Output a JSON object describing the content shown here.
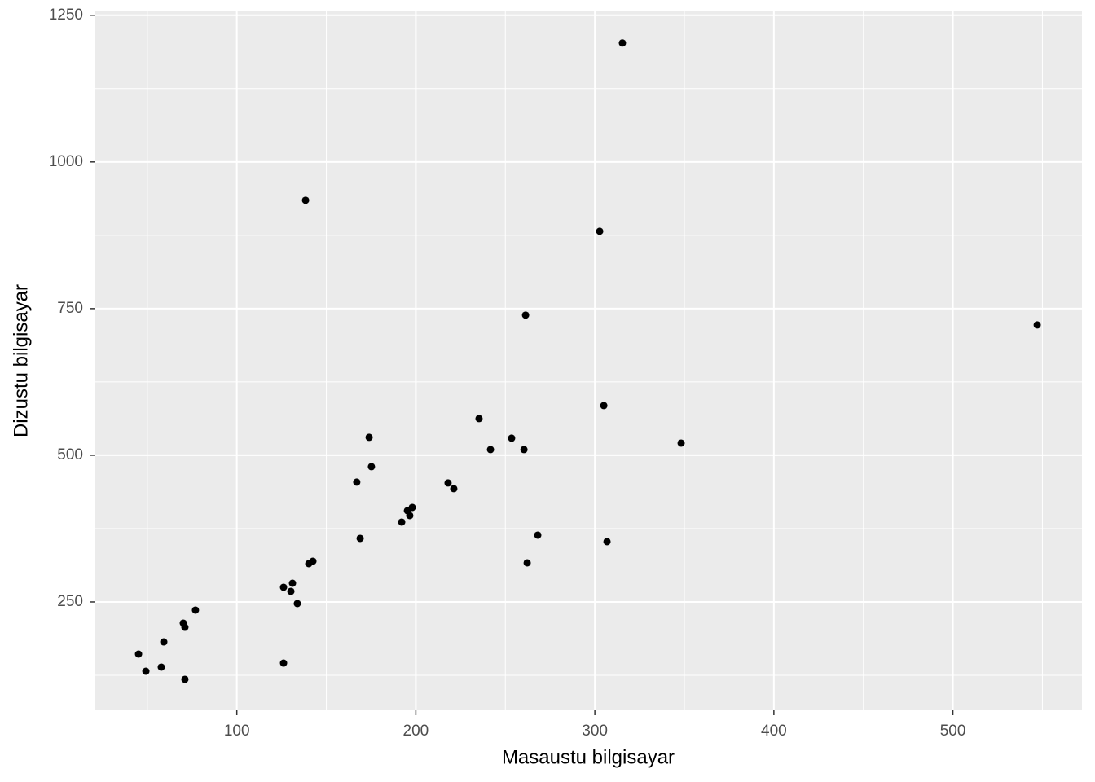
{
  "chart_data": {
    "type": "scatter",
    "x_label": "Masaustu bilgisayar",
    "y_label": "Dizustu bilgisayar",
    "x": [
      315.4,
      138.4,
      302.7,
      261.3,
      547.1,
      305.0,
      348.2,
      235.3,
      253.5,
      241.7,
      260.4,
      173.9,
      175.2,
      167.0,
      218.0,
      221.2,
      198.0,
      195.3,
      196.6,
      192.1,
      168.9,
      268.1,
      306.8,
      262.2,
      142.5,
      140.2,
      131.1,
      126.1,
      130.2,
      133.8,
      126.1,
      76.9,
      70.1,
      71.0,
      59.2,
      45.1,
      57.8,
      49.2,
      71.0
    ],
    "values": [
      1202.8,
      934.7,
      881.9,
      738.9,
      722.2,
      584.7,
      520.8,
      562.5,
      529.2,
      509.7,
      509.7,
      530.6,
      480.6,
      454.2,
      452.8,
      443.1,
      411.1,
      405.6,
      397.2,
      386.1,
      358.3,
      363.9,
      352.8,
      316.7,
      319.4,
      315.3,
      281.9,
      275.0,
      268.1,
      247.2,
      145.8,
      236.1,
      213.9,
      206.9,
      181.9,
      161.1,
      138.9,
      131.9,
      118.1
    ],
    "color": "#000000",
    "xlim": [
      20.5,
      572.1
    ],
    "ylim": [
      65.3,
      1258
    ],
    "xticks": [
      100,
      200,
      300,
      400,
      500
    ],
    "yticks": [
      250,
      500,
      750,
      1000,
      1250
    ],
    "grid": true,
    "minor_grid": true
  }
}
